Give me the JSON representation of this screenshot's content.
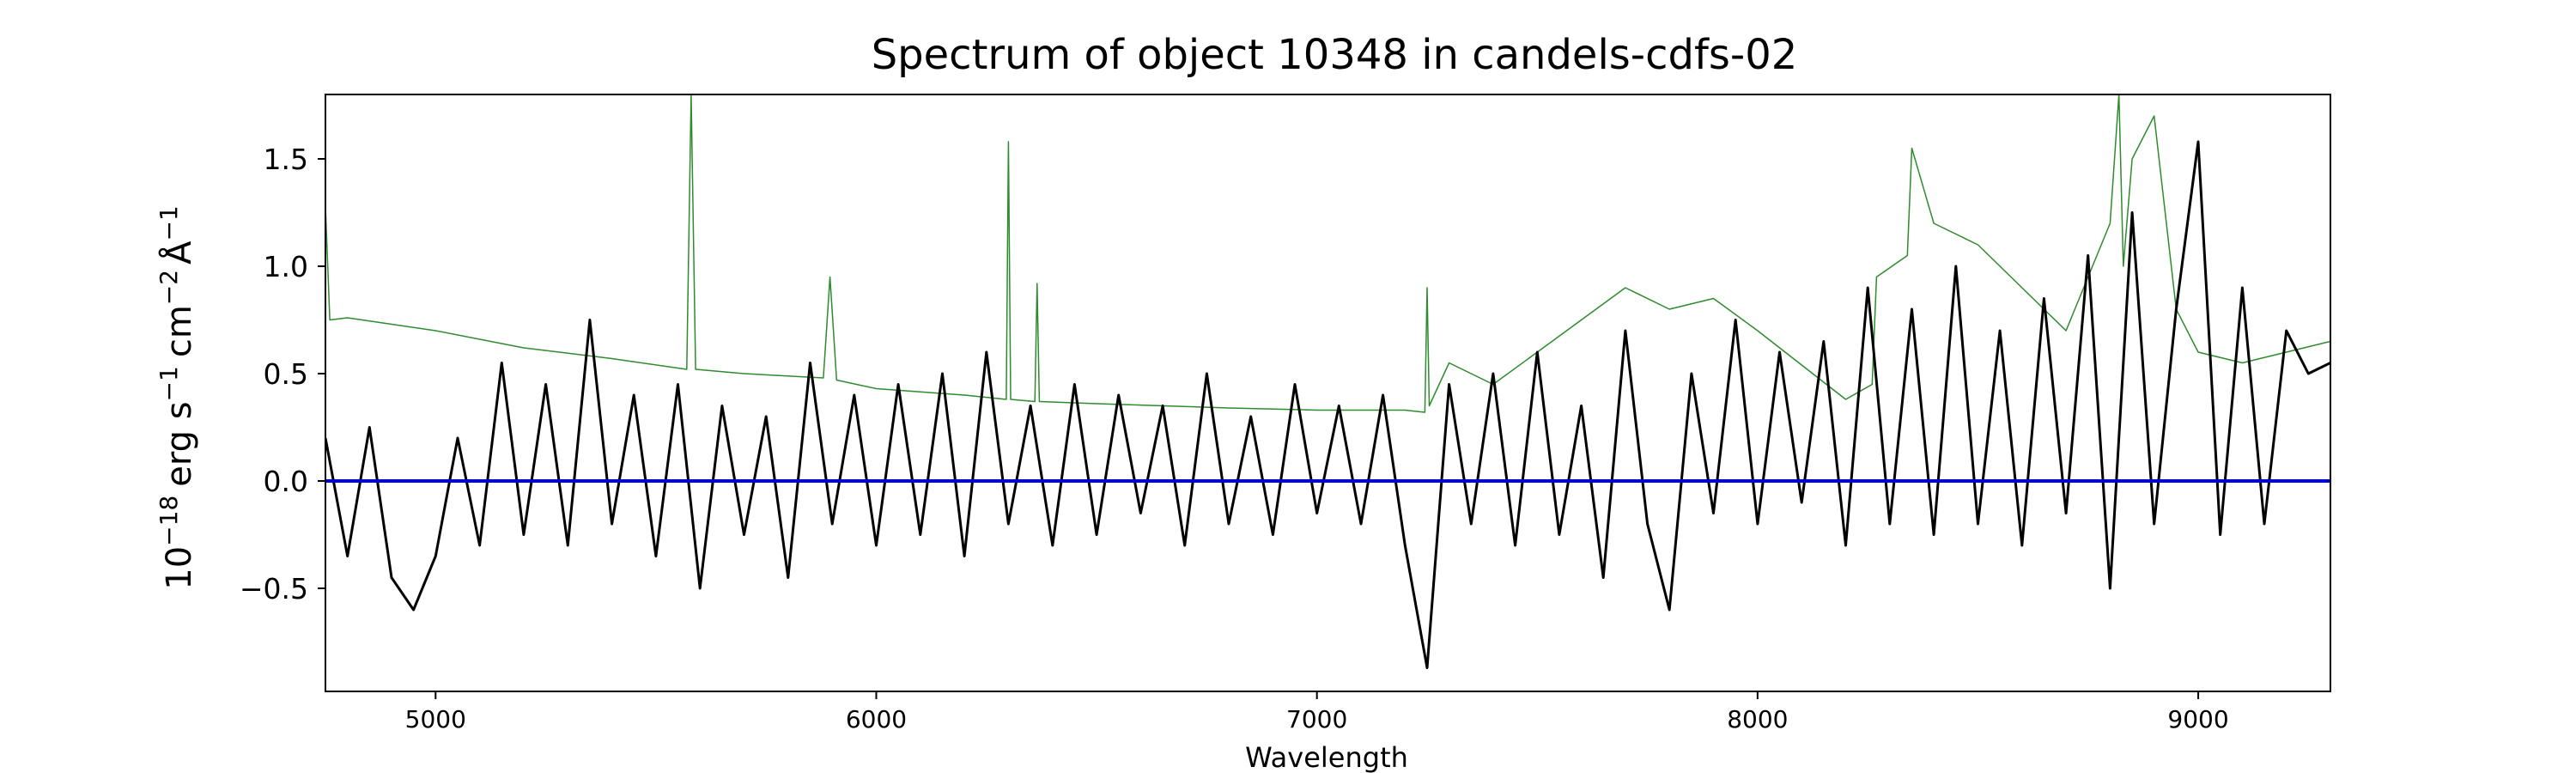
{
  "chart_data": {
    "type": "line",
    "title": "Spectrum of object 10348 in candels-cdfs-02",
    "xlabel": "Wavelength",
    "ylabel": {
      "base": "10",
      "base_exp": "−18",
      "unit_erg": "erg s",
      "s_exp": "−1",
      "unit_cm": "cm",
      "cm_exp": "−2",
      "unit_angstrom": "Å",
      "a_exp": "−1"
    },
    "xlim": [
      4750,
      9300
    ],
    "ylim": [
      -0.98,
      1.8
    ],
    "xticks": [
      5000,
      6000,
      7000,
      8000,
      9000
    ],
    "xtick_labels": [
      "5000",
      "6000",
      "7000",
      "8000",
      "9000"
    ],
    "yticks": [
      -0.5,
      0.0,
      0.5,
      1.0,
      1.5
    ],
    "ytick_labels": [
      "−0.5",
      "0.0",
      "0.5",
      "1.0",
      "1.5"
    ],
    "grid": false,
    "series": [
      {
        "role": "flux",
        "color": "#000000",
        "x": [
          4750,
          4800,
          4850,
          4900,
          4950,
          5000,
          5050,
          5100,
          5150,
          5200,
          5250,
          5300,
          5350,
          5400,
          5450,
          5500,
          5550,
          5600,
          5650,
          5700,
          5750,
          5800,
          5850,
          5900,
          5950,
          6000,
          6050,
          6100,
          6150,
          6200,
          6250,
          6300,
          6350,
          6400,
          6450,
          6500,
          6550,
          6600,
          6650,
          6700,
          6750,
          6800,
          6850,
          6900,
          6950,
          7000,
          7050,
          7100,
          7150,
          7200,
          7250,
          7300,
          7350,
          7400,
          7450,
          7500,
          7550,
          7600,
          7650,
          7700,
          7750,
          7800,
          7850,
          7900,
          7950,
          8000,
          8050,
          8100,
          8150,
          8200,
          8250,
          8300,
          8350,
          8400,
          8450,
          8500,
          8550,
          8600,
          8650,
          8700,
          8750,
          8800,
          8850,
          8900,
          8950,
          9000,
          9050,
          9100,
          9150,
          9200,
          9250,
          9300
        ],
        "y": [
          0.2,
          -0.35,
          0.25,
          -0.45,
          -0.6,
          -0.35,
          0.2,
          -0.3,
          0.55,
          -0.25,
          0.45,
          -0.3,
          0.75,
          -0.2,
          0.4,
          -0.35,
          0.45,
          -0.5,
          0.35,
          -0.25,
          0.3,
          -0.45,
          0.55,
          -0.2,
          0.4,
          -0.3,
          0.45,
          -0.25,
          0.5,
          -0.35,
          0.6,
          -0.2,
          0.35,
          -0.3,
          0.45,
          -0.25,
          0.4,
          -0.15,
          0.35,
          -0.3,
          0.5,
          -0.2,
          0.3,
          -0.25,
          0.45,
          -0.15,
          0.35,
          -0.2,
          0.4,
          -0.3,
          -0.87,
          0.45,
          -0.2,
          0.5,
          -0.3,
          0.6,
          -0.25,
          0.35,
          -0.45,
          0.7,
          -0.2,
          -0.6,
          0.5,
          -0.15,
          0.75,
          -0.2,
          0.6,
          -0.1,
          0.65,
          -0.3,
          0.9,
          -0.2,
          0.8,
          -0.25,
          1.0,
          -0.2,
          0.7,
          -0.3,
          0.85,
          -0.15,
          1.05,
          -0.5,
          1.25,
          -0.2,
          0.8,
          1.58,
          -0.25,
          0.9,
          -0.2,
          0.7,
          0.5,
          0.55
        ]
      },
      {
        "role": "model",
        "color": "#2e8b2e",
        "x": [
          4750,
          4760,
          4800,
          5000,
          5200,
          5400,
          5570,
          5580,
          5590,
          5700,
          5880,
          5895,
          5910,
          6000,
          6200,
          6295,
          6300,
          6305,
          6360,
          6365,
          6370,
          6500,
          6800,
          7000,
          7200,
          7245,
          7250,
          7255,
          7300,
          7400,
          7500,
          7600,
          7700,
          7800,
          7900,
          8000,
          8200,
          8260,
          8270,
          8340,
          8350,
          8400,
          8500,
          8600,
          8700,
          8800,
          8820,
          8830,
          8850,
          8900,
          8950,
          9000,
          9100,
          9200,
          9300
        ],
        "y": [
          1.28,
          0.75,
          0.76,
          0.7,
          0.62,
          0.57,
          0.52,
          1.8,
          0.52,
          0.5,
          0.48,
          0.95,
          0.47,
          0.43,
          0.4,
          0.38,
          1.58,
          0.38,
          0.37,
          0.92,
          0.37,
          0.36,
          0.34,
          0.33,
          0.33,
          0.32,
          0.9,
          0.35,
          0.55,
          0.45,
          0.6,
          0.75,
          0.9,
          0.8,
          0.85,
          0.7,
          0.38,
          0.45,
          0.95,
          1.05,
          1.55,
          1.2,
          1.1,
          0.9,
          0.7,
          1.2,
          1.8,
          1.0,
          1.5,
          1.7,
          0.8,
          0.6,
          0.55,
          0.6,
          0.65
        ]
      },
      {
        "role": "zero",
        "color": "#0000cc",
        "x": [
          4750,
          9300
        ],
        "y": [
          0.0,
          0.0
        ]
      }
    ]
  }
}
